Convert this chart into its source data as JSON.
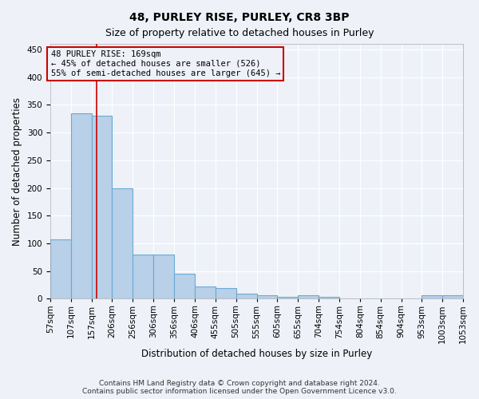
{
  "title_line1": "48, PURLEY RISE, PURLEY, CR8 3BP",
  "title_line2": "Size of property relative to detached houses in Purley",
  "xlabel": "Distribution of detached houses by size in Purley",
  "ylabel": "Number of detached properties",
  "bar_color": "#b8d0e8",
  "bar_edge_color": "#6aaad4",
  "annotation_box_color": "#cc0000",
  "vline_color": "#cc0000",
  "property_size": 169,
  "annotation_line1": "48 PURLEY RISE: 169sqm",
  "annotation_line2": "← 45% of detached houses are smaller (526)",
  "annotation_line3": "55% of semi-detached houses are larger (645) →",
  "bins": [
    57,
    107,
    157,
    206,
    256,
    306,
    356,
    406,
    455,
    505,
    555,
    605,
    655,
    704,
    754,
    804,
    854,
    904,
    953,
    1003,
    1053
  ],
  "counts": [
    107,
    335,
    330,
    200,
    80,
    80,
    45,
    23,
    20,
    10,
    7,
    4,
    6,
    4,
    1,
    1,
    1,
    1,
    6,
    6
  ],
  "tick_labels": [
    "57sqm",
    "107sqm",
    "157sqm",
    "206sqm",
    "256sqm",
    "306sqm",
    "356sqm",
    "406sqm",
    "455sqm",
    "505sqm",
    "555sqm",
    "605sqm",
    "655sqm",
    "704sqm",
    "754sqm",
    "804sqm",
    "854sqm",
    "904sqm",
    "953sqm",
    "1003sqm",
    "1053sqm"
  ],
  "ylim": [
    0,
    460
  ],
  "yticks": [
    0,
    50,
    100,
    150,
    200,
    250,
    300,
    350,
    400,
    450
  ],
  "footer_text": "Contains HM Land Registry data © Crown copyright and database right 2024.\nContains public sector information licensed under the Open Government Licence v3.0.",
  "background_color": "#eef2f8",
  "grid_color": "#ffffff",
  "title_fontsize": 10,
  "subtitle_fontsize": 9,
  "label_fontsize": 8.5,
  "tick_fontsize": 7.5,
  "annotation_fontsize": 7.5,
  "footer_fontsize": 6.5
}
